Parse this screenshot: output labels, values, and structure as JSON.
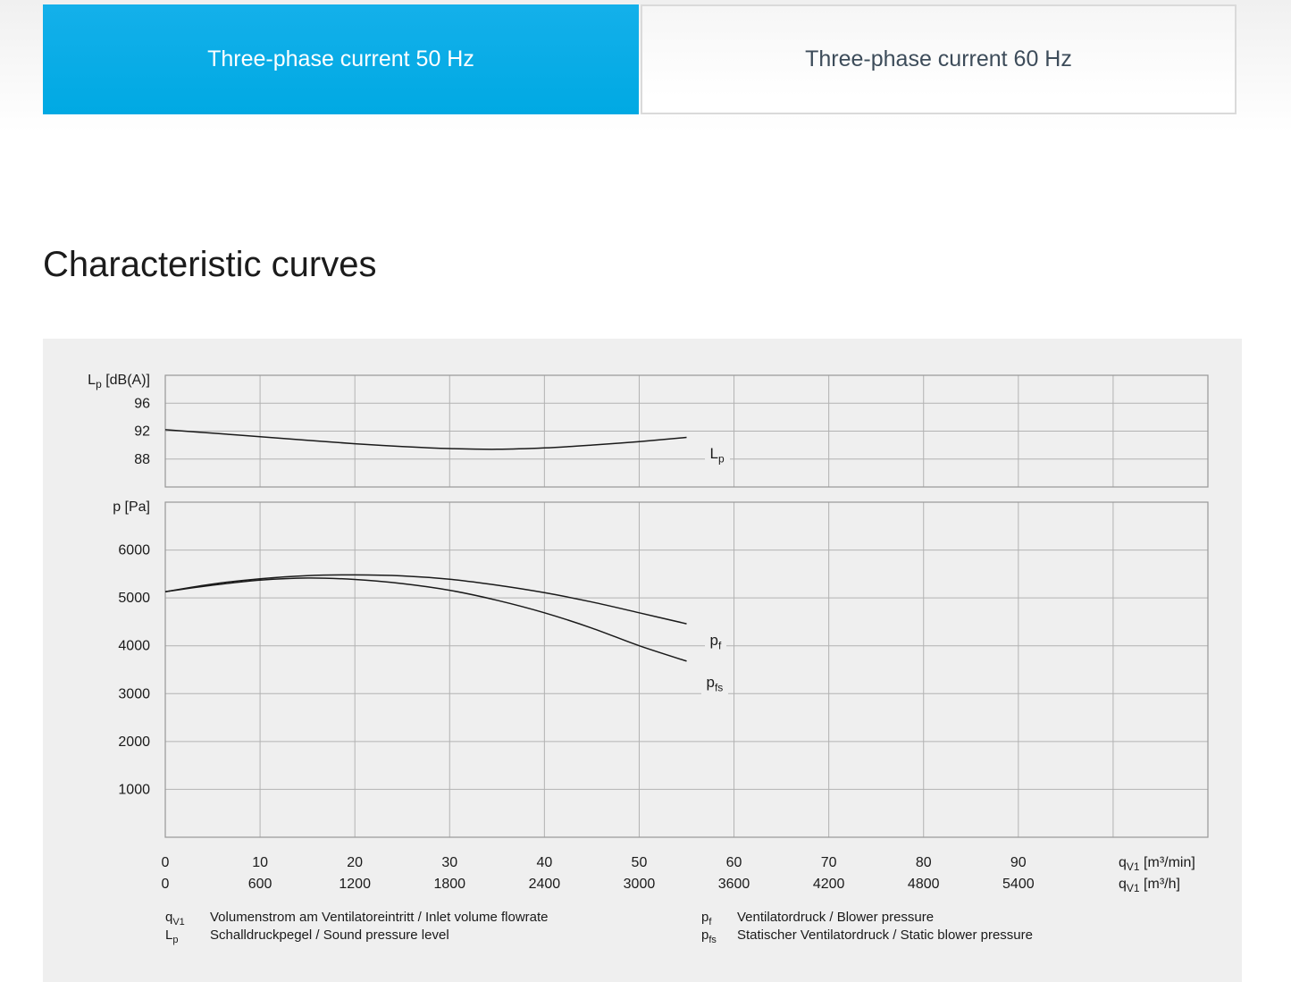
{
  "tabs": [
    {
      "label": "Three-phase current 50 Hz",
      "active": true
    },
    {
      "label": "Three-phase current 60 Hz",
      "active": false
    }
  ],
  "title": "Characteristic curves",
  "colors": {
    "accent": "#00ACE6",
    "tab_inactive_text": "#3D4C5A",
    "panel_bg": "#EFEFEF",
    "grid": "#B2B2B2",
    "plot_border": "#989898",
    "curve": "#1A1A1A",
    "text": "#1A1A1A"
  },
  "chart_data": [
    {
      "type": "line",
      "title": "Sound pressure level curve",
      "ylabel": {
        "sym": "L",
        "sub": "p",
        "rest": " [dB(A)]"
      },
      "ylim": [
        84,
        100
      ],
      "yticks": [
        88,
        92,
        96
      ],
      "xlim": [
        0,
        110
      ],
      "grid": true,
      "x": [
        0,
        5,
        10,
        15,
        20,
        25,
        30,
        35,
        40,
        45,
        50,
        55
      ],
      "series": [
        {
          "name": "Lp",
          "label": {
            "sym": "L",
            "sub": "p"
          },
          "values": [
            92.2,
            91.7,
            91.2,
            90.7,
            90.2,
            89.8,
            89.5,
            89.4,
            89.6,
            90.0,
            90.5,
            91.1
          ]
        }
      ]
    },
    {
      "type": "line",
      "title": "Blower pressure curves",
      "ylabel": {
        "sym": "p",
        "sub": "",
        "rest": " [Pa]"
      },
      "ylim": [
        0,
        7000
      ],
      "yticks": [
        1000,
        2000,
        3000,
        4000,
        5000,
        6000
      ],
      "xlim": [
        0,
        110
      ],
      "grid": true,
      "x": [
        0,
        5,
        10,
        15,
        20,
        25,
        30,
        35,
        40,
        45,
        50,
        55
      ],
      "series": [
        {
          "name": "pf",
          "label": {
            "sym": "p",
            "sub": "f"
          },
          "values": [
            5130,
            5290,
            5400,
            5465,
            5480,
            5460,
            5390,
            5265,
            5110,
            4915,
            4690,
            4460
          ]
        },
        {
          "name": "pfs",
          "label": {
            "sym": "p",
            "sub": "fs"
          },
          "values": [
            5130,
            5265,
            5370,
            5415,
            5385,
            5300,
            5160,
            4950,
            4690,
            4370,
            4000,
            3680
          ]
        }
      ]
    }
  ],
  "x_axis": {
    "rows": [
      {
        "ticks": [
          0,
          10,
          20,
          30,
          40,
          50,
          60,
          70,
          80,
          90
        ],
        "unit": {
          "sym": "q",
          "sub": "V1",
          "rest": " [m³/min]"
        }
      },
      {
        "ticks": [
          0,
          600,
          1200,
          1800,
          2400,
          3000,
          3600,
          4200,
          4800,
          5400
        ],
        "unit": {
          "sym": "q",
          "sub": "V1",
          "rest": " [m³/h]"
        }
      }
    ],
    "grid_step": 10
  },
  "legend": {
    "items": [
      {
        "sym": "q",
        "sub": "V1",
        "text": "Volumenstrom am Ventilatoreintritt / Inlet volume flowrate",
        "col": 0
      },
      {
        "sym": "L",
        "sub": "p",
        "text": "Schalldruckpegel / Sound pressure level",
        "col": 0
      },
      {
        "sym": "p",
        "sub": "f",
        "text": "Ventilatordruck / Blower pressure",
        "col": 1
      },
      {
        "sym": "p",
        "sub": "fs",
        "text": "Statischer Ventilatordruck / Static blower pressure",
        "col": 1
      }
    ]
  }
}
